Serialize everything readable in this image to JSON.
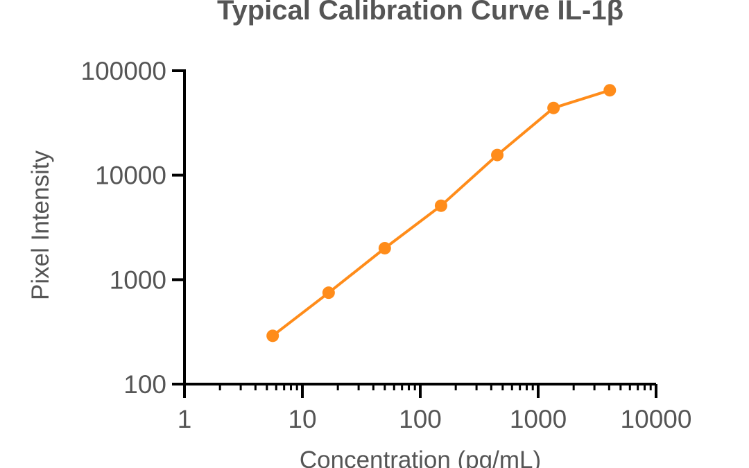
{
  "chart_data": {
    "type": "line",
    "title": "Typical Calibration Curve IL-1β",
    "xlabel": "Concentration (pg/mL)",
    "ylabel": "Pixel Intensity",
    "xscale": "log",
    "yscale": "log",
    "xlim": [
      1,
      10000
    ],
    "ylim": [
      100,
      100000
    ],
    "x_ticks": [
      "1",
      "10",
      "100",
      "1000",
      "10000"
    ],
    "y_ticks": [
      "100",
      "1000",
      "10000",
      "100000"
    ],
    "grid": false,
    "legend": "none",
    "series": [
      {
        "color": "#FF8C1A",
        "x": [
          5.6,
          16.7,
          50,
          150,
          450,
          1350,
          4050
        ],
        "values": [
          290,
          750,
          2000,
          5100,
          15600,
          44000,
          65000
        ]
      }
    ]
  }
}
